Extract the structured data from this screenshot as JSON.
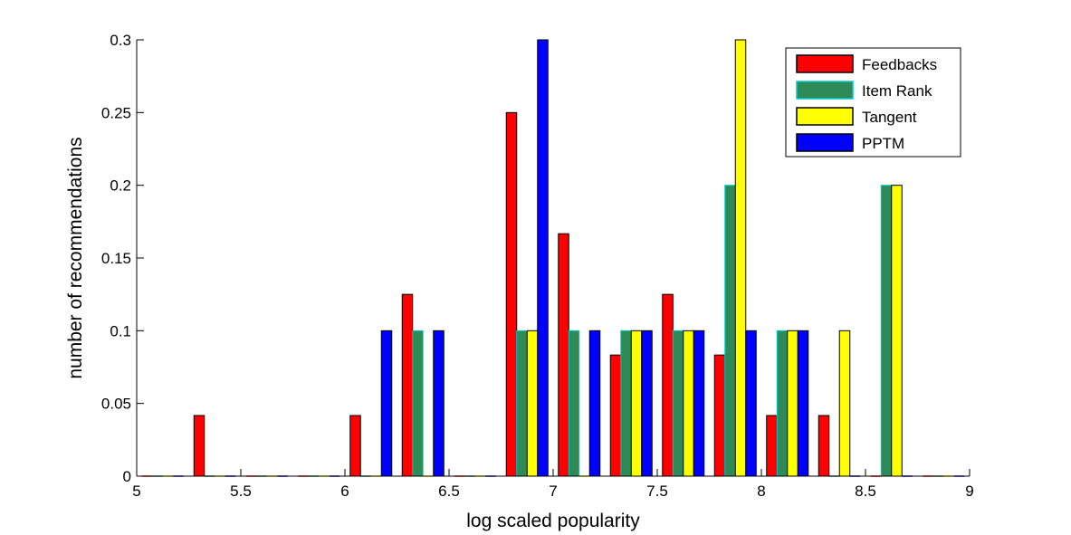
{
  "chart_data": {
    "type": "bar",
    "title": "",
    "xlabel": "log scaled popularity",
    "ylabel": "number of recommendations",
    "xlim": [
      5,
      9
    ],
    "ylim": [
      0,
      0.3
    ],
    "xticks": [
      5,
      5.5,
      6,
      6.5,
      7,
      7.5,
      8,
      8.5,
      9
    ],
    "xtick_labels": [
      "5",
      "5.5",
      "6",
      "6.5",
      "7",
      "7.5",
      "8",
      "8.5",
      "9"
    ],
    "yticks": [
      0,
      0.05,
      0.1,
      0.15,
      0.2,
      0.25,
      0.3
    ],
    "ytick_labels": [
      "0",
      "0.05",
      "0.1",
      "0.15",
      "0.2",
      "0.25",
      "0.3"
    ],
    "grid": false,
    "legend_position": "top-right",
    "x": [
      5.125,
      5.375,
      5.625,
      5.875,
      6.125,
      6.375,
      6.625,
      6.875,
      7.125,
      7.375,
      7.625,
      7.875,
      8.125,
      8.375,
      8.625,
      8.875
    ],
    "series": [
      {
        "name": "Feedbacks",
        "color": "#ff0000",
        "values": [
          0,
          0.0417,
          0,
          0,
          0.0417,
          0.125,
          0,
          0.25,
          0.1667,
          0.0833,
          0.125,
          0.0833,
          0.0417,
          0.0417,
          0,
          0
        ]
      },
      {
        "name": "Item Rank",
        "color": "#2e8b57",
        "edge": "#00cccc",
        "values": [
          0,
          0,
          0,
          0,
          0,
          0.1,
          0,
          0.1,
          0.1,
          0.1,
          0.1,
          0.2,
          0.1,
          0,
          0.2,
          0
        ]
      },
      {
        "name": "Tangent",
        "color": "#ffff00",
        "values": [
          0,
          0,
          0,
          0,
          0,
          0,
          0,
          0.1,
          0,
          0.1,
          0.1,
          0.3,
          0.1,
          0.1,
          0.2,
          0
        ]
      },
      {
        "name": "PPTM",
        "color": "#0000ff",
        "values": [
          0,
          0,
          0,
          0,
          0.1,
          0.1,
          0,
          0.3,
          0.1,
          0.1,
          0.1,
          0.1,
          0.1,
          0,
          0,
          0
        ]
      }
    ]
  }
}
